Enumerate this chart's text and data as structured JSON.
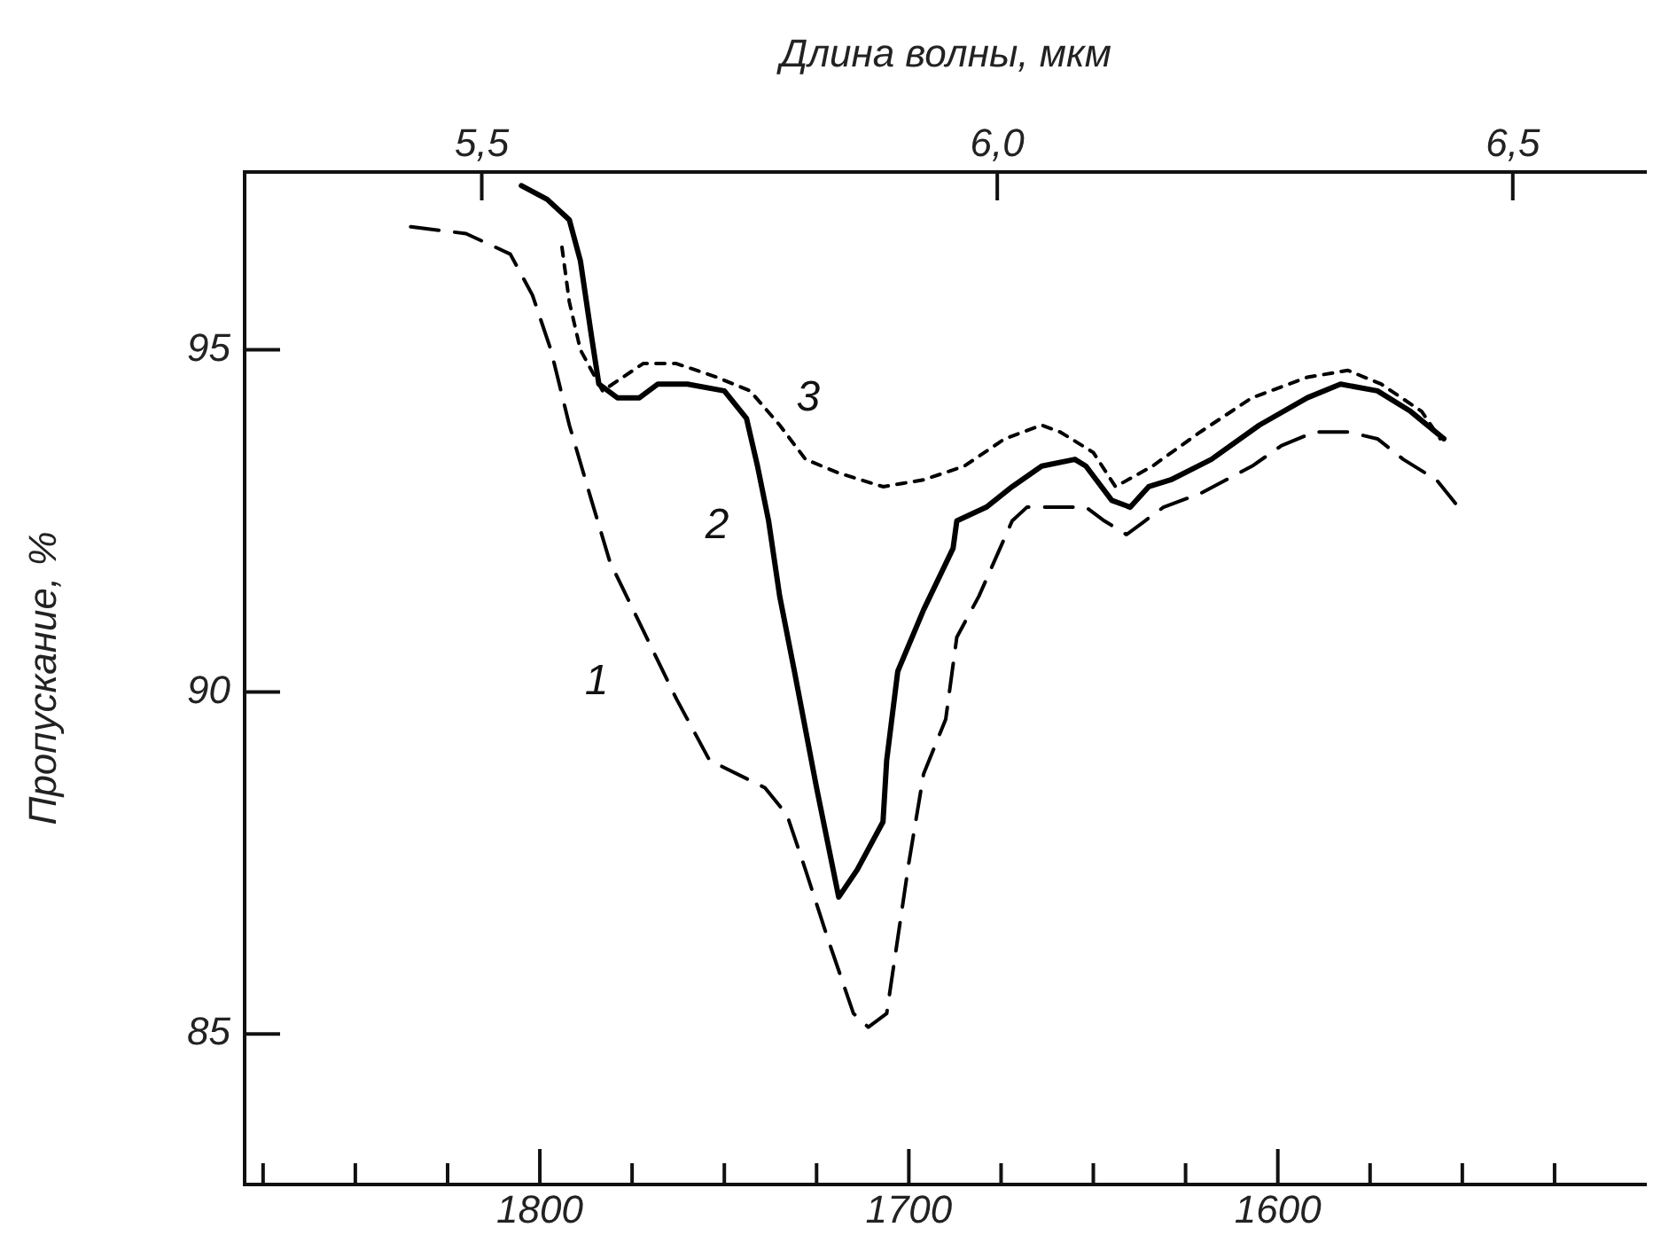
{
  "chart_data": {
    "type": "line",
    "x2label": "Длина волны, мкм",
    "ylabel": "Пропускание, %",
    "xlim": [
      1880,
      1500
    ],
    "xticks": [
      {
        "value": 1875,
        "label": null
      },
      {
        "value": 1850,
        "label": null
      },
      {
        "value": 1825,
        "label": null
      },
      1800,
      {
        "value": 1775,
        "label": null
      },
      {
        "value": 1750,
        "label": null
      },
      {
        "value": 1725,
        "label": null
      },
      1700,
      {
        "value": 1675,
        "label": null
      },
      {
        "value": 1650,
        "label": null
      },
      {
        "value": 1625,
        "label": null
      },
      1600,
      {
        "value": 1575,
        "label": null
      },
      {
        "value": 1550,
        "label": null
      },
      {
        "value": 1525,
        "label": null
      }
    ],
    "x2lim": [
      5.27,
      6.63
    ],
    "x2ticks": [
      {
        "value": 5.5,
        "label": "5,5"
      },
      {
        "value": 6.0,
        "label": "6,0"
      },
      {
        "value": 6.5,
        "label": "6,5"
      }
    ],
    "ylim": [
      82.8,
      97.6
    ],
    "yticks": [
      85,
      90,
      95
    ],
    "grid": false,
    "legend": false,
    "marker": "none",
    "series": [
      {
        "name": "1",
        "color": "#000000",
        "line_style": "dashed",
        "x": [
          1835,
          1820,
          1808,
          1802,
          1797,
          1792,
          1786,
          1781,
          1772,
          1763,
          1754,
          1739,
          1733,
          1728,
          1722,
          1715,
          1711,
          1706,
          1703,
          1700,
          1696,
          1690,
          1687,
          1681,
          1672,
          1668,
          1652,
          1647,
          1641,
          1636,
          1631,
          1621,
          1607,
          1599,
          1590,
          1581,
          1573,
          1566,
          1557,
          1551
        ],
        "values": [
          96.8,
          96.7,
          96.4,
          95.8,
          95.0,
          93.9,
          92.8,
          91.9,
          90.9,
          89.9,
          89.0,
          88.6,
          88.2,
          87.4,
          86.4,
          85.3,
          85.1,
          85.3,
          86.4,
          87.5,
          88.8,
          89.6,
          90.8,
          91.4,
          92.5,
          92.7,
          92.7,
          92.5,
          92.3,
          92.5,
          92.7,
          92.9,
          93.3,
          93.6,
          93.8,
          93.8,
          93.7,
          93.4,
          93.1,
          92.7
        ]
      },
      {
        "name": "2",
        "color": "#000000",
        "line_style": "solid",
        "x": [
          1805,
          1798,
          1792,
          1789,
          1786,
          1784,
          1779,
          1773,
          1768,
          1760,
          1750,
          1744,
          1741,
          1738,
          1735,
          1731,
          1725,
          1719,
          1714,
          1707,
          1706,
          1703,
          1696,
          1688,
          1687,
          1679,
          1672,
          1664,
          1655,
          1652,
          1645,
          1640,
          1635,
          1629,
          1618,
          1605,
          1592,
          1583,
          1573,
          1564,
          1555
        ],
        "values": [
          97.4,
          97.2,
          96.9,
          96.3,
          95.2,
          94.5,
          94.3,
          94.3,
          94.5,
          94.5,
          94.4,
          94.0,
          93.3,
          92.5,
          91.4,
          90.3,
          88.6,
          87.0,
          87.4,
          88.1,
          89.0,
          90.3,
          91.2,
          92.1,
          92.5,
          92.7,
          93.0,
          93.3,
          93.4,
          93.3,
          92.8,
          92.7,
          93.0,
          93.1,
          93.4,
          93.9,
          94.3,
          94.5,
          94.4,
          94.1,
          93.7
        ]
      },
      {
        "name": "3",
        "color": "#000000",
        "line_style": "dotted",
        "x": [
          1794,
          1792,
          1789,
          1783,
          1772,
          1763,
          1752,
          1743,
          1735,
          1728,
          1719,
          1707,
          1696,
          1685,
          1674,
          1664,
          1659,
          1650,
          1644,
          1634,
          1621,
          1607,
          1592,
          1581,
          1572,
          1561,
          1556
        ],
        "values": [
          96.5,
          95.7,
          95.0,
          94.4,
          94.8,
          94.8,
          94.6,
          94.4,
          93.9,
          93.4,
          93.2,
          93.0,
          93.1,
          93.3,
          93.7,
          93.9,
          93.8,
          93.5,
          93.0,
          93.3,
          93.8,
          94.3,
          94.6,
          94.7,
          94.5,
          94.1,
          93.7
        ]
      }
    ]
  }
}
